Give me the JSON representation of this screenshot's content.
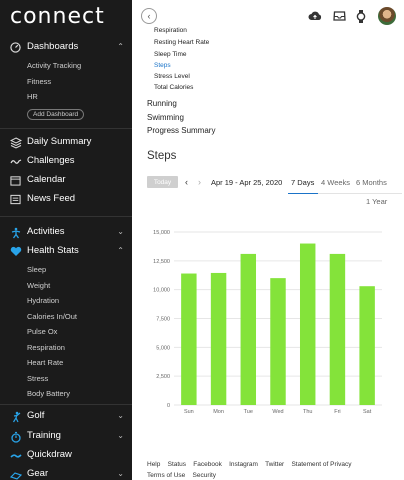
{
  "brand": "connect",
  "sidebar": {
    "dashboards": {
      "label": "Dashboards",
      "items": [
        "Activity Tracking",
        "Fitness",
        "HR"
      ],
      "add": "Add Dashboard"
    },
    "nav": [
      {
        "label": "Daily Summary",
        "icon": "layers-icon"
      },
      {
        "label": "Challenges",
        "icon": "wave-icon"
      },
      {
        "label": "Calendar",
        "icon": "calendar-icon"
      },
      {
        "label": "News Feed",
        "icon": "newsfeed-icon"
      }
    ],
    "activities": "Activities",
    "health_stats": {
      "label": "Health Stats",
      "items": [
        "Sleep",
        "Weight",
        "Hydration",
        "Calories In/Out",
        "Pulse Ox",
        "Respiration",
        "Heart Rate",
        "Stress",
        "Body Battery"
      ]
    },
    "bottom": [
      {
        "label": "Golf",
        "icon": "golf-icon"
      },
      {
        "label": "Training",
        "icon": "stopwatch-icon"
      },
      {
        "label": "Quickdraw",
        "icon": "quickdraw-icon"
      },
      {
        "label": "Gear",
        "icon": "gear-icon"
      }
    ]
  },
  "main": {
    "reports_list": [
      "Respiration",
      "Resting Heart Rate",
      "Sleep Time",
      "Steps",
      "Stress Level",
      "Total Calories"
    ],
    "sections": [
      "Running",
      "Swimming",
      "Progress Summary"
    ],
    "title": "Steps",
    "today": "Today",
    "date_range": "Apr 19 - Apr 25, 2020",
    "tabs": [
      "7 Days",
      "4 Weeks",
      "6 Months",
      "1 Year"
    ],
    "footer_row1": [
      "Help",
      "Status",
      "Facebook",
      "Instagram",
      "Twitter",
      "Statement of Privacy"
    ],
    "footer_row2": [
      "Terms of Use",
      "Security"
    ]
  },
  "colors": {
    "bar": "#84e33a",
    "accent": "#1a73c8",
    "sidebar": "#1b1b1b"
  },
  "chart_data": {
    "type": "bar",
    "categories": [
      "Sun",
      "Mon",
      "Tue",
      "Wed",
      "Thu",
      "Fri",
      "Sat"
    ],
    "values": [
      11400,
      11450,
      13100,
      11000,
      14000,
      13100,
      10300
    ],
    "yticks": [
      "15,000",
      "12,500",
      "10,000",
      "7,500",
      "5,000",
      "2,500",
      "0"
    ],
    "ylim": [
      0,
      15000
    ],
    "grid": true
  }
}
